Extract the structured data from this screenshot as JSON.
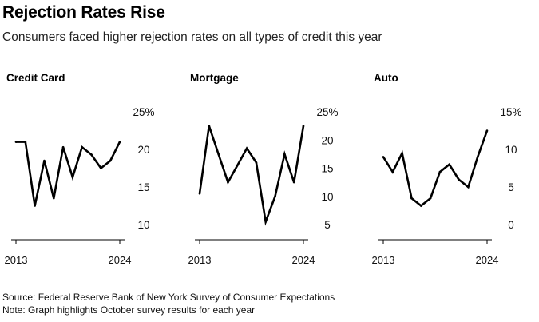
{
  "header": {
    "title": "Rejection Rates Rise",
    "subtitle": "Consumers faced higher rejection rates on all types of credit this year"
  },
  "chart_data": [
    {
      "type": "line",
      "title": "Credit Card",
      "x": [
        2013,
        2014,
        2015,
        2016,
        2017,
        2018,
        2019,
        2020,
        2021,
        2022,
        2023,
        2024
      ],
      "values": [
        21.0,
        21.0,
        12.5,
        18.5,
        13.5,
        20.3,
        16.3,
        20.3,
        19.3,
        17.5,
        18.5,
        21.0
      ],
      "ylim": [
        10,
        25
      ],
      "yticks": [
        10,
        15,
        20,
        25
      ],
      "ytick_labels": [
        "10",
        "15",
        "20",
        "25%"
      ],
      "xtick_labels": [
        "2013",
        "2024"
      ]
    },
    {
      "type": "line",
      "title": "Mortgage",
      "x": [
        2013,
        2014,
        2015,
        2016,
        2017,
        2018,
        2019,
        2020,
        2021,
        2022,
        2023,
        2024
      ],
      "values": [
        10.5,
        22.5,
        17.5,
        12.5,
        15.5,
        18.5,
        16.0,
        5.5,
        10.0,
        17.5,
        12.5,
        22.5
      ],
      "ylim": [
        5,
        25
      ],
      "yticks": [
        5,
        10,
        15,
        20,
        25
      ],
      "ytick_labels": [
        "5",
        "10",
        "15",
        "20",
        "25%"
      ],
      "xtick_labels": [
        "2013",
        "2024"
      ]
    },
    {
      "type": "line",
      "title": "Auto",
      "x": [
        2013,
        2014,
        2015,
        2016,
        2017,
        2018,
        2019,
        2020,
        2021,
        2022,
        2023,
        2024
      ],
      "values": [
        9.0,
        7.0,
        9.5,
        3.5,
        2.5,
        3.5,
        7.0,
        8.0,
        6.0,
        5.0,
        9.0,
        12.5
      ],
      "ylim": [
        0,
        15
      ],
      "yticks": [
        0,
        5,
        10,
        15
      ],
      "ytick_labels": [
        "0",
        "5",
        "10",
        "15%"
      ],
      "xtick_labels": [
        "2013",
        "2024"
      ]
    }
  ],
  "footer": {
    "source": "Source: Federal Reserve Bank of New York Survey of Consumer Expectations",
    "note": "Note: Graph highlights October survey results for each year"
  }
}
